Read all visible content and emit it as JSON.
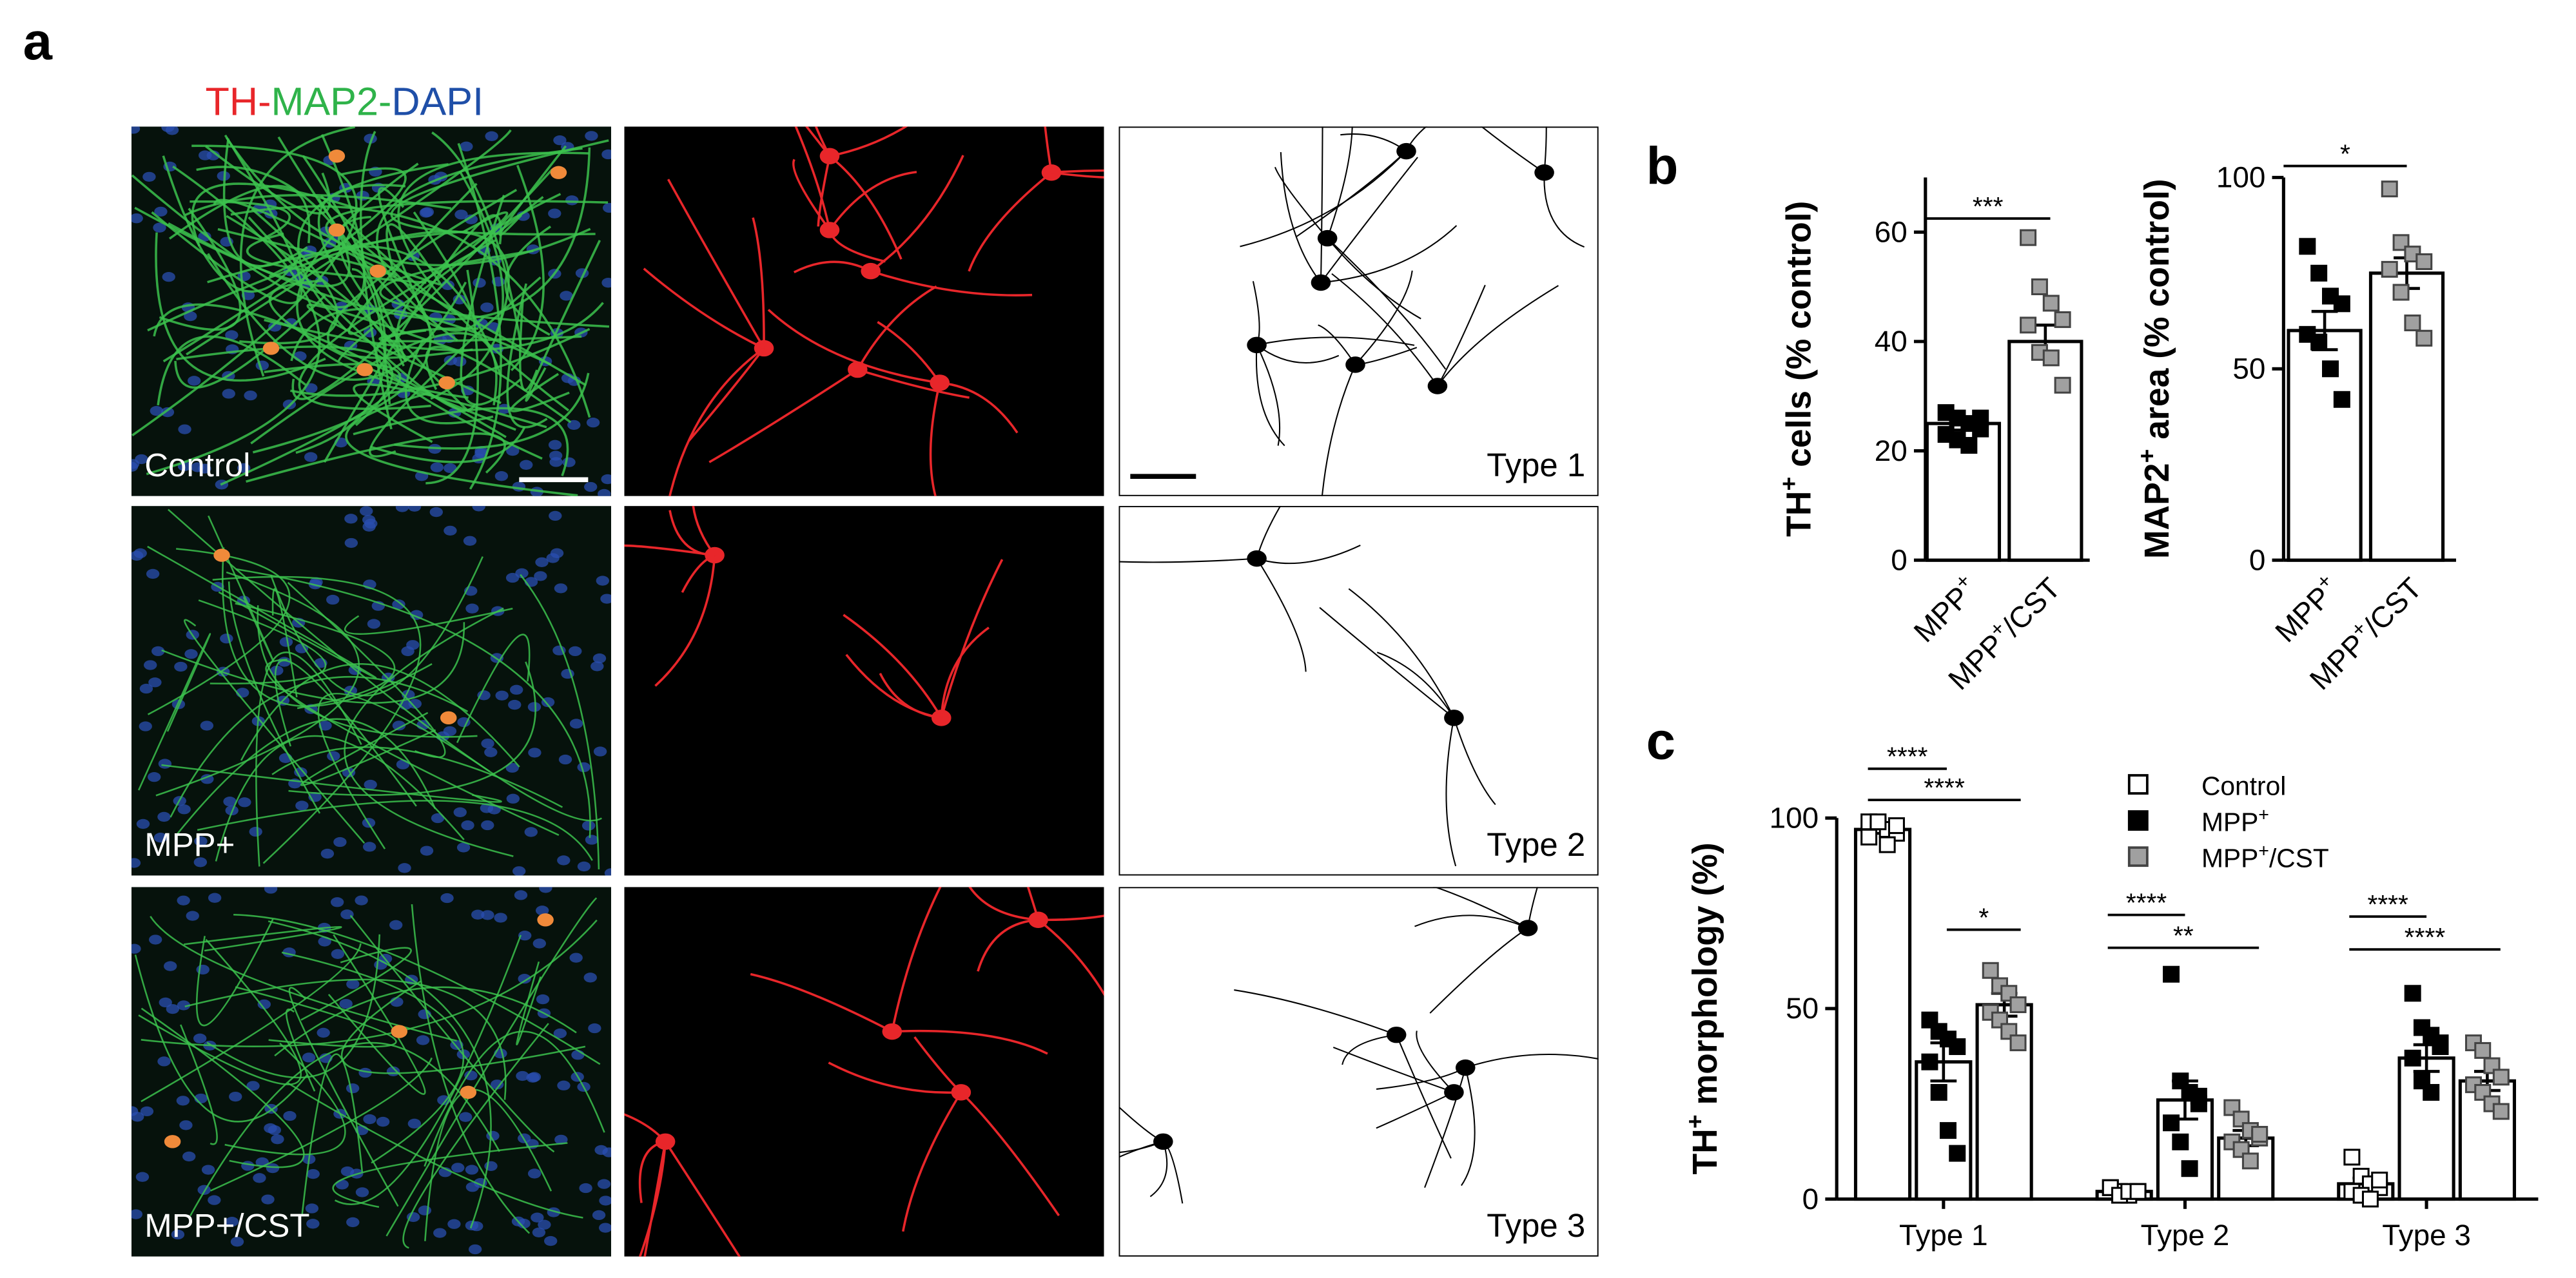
{
  "panel_labels": [
    "a",
    "b",
    "c"
  ],
  "panel_a": {
    "title_parts": [
      "TH-",
      "MAP2-",
      "DAPI"
    ],
    "title_colors": [
      "#e8262a",
      "#2fb34a",
      "#1f4fa8"
    ],
    "row_labels": [
      "Control",
      "MPP+",
      "MPP+/CST"
    ],
    "type_labels": [
      "Type 1",
      "Type 2",
      "Type 3"
    ]
  },
  "chart_data": [
    {
      "type": "bar",
      "ylabel": "TH+ cells (% control)",
      "categories": [
        "MPP+",
        "MPP+/CST"
      ],
      "values": [
        25,
        40
      ],
      "errors": [
        1.2,
        3
      ],
      "points": [
        [
          27,
          26,
          25,
          24,
          23,
          22,
          21,
          26
        ],
        [
          59,
          50,
          47,
          44,
          43,
          38,
          37,
          32
        ]
      ],
      "point_colors": [
        "#000000",
        "#a0a0a0"
      ],
      "color": "#ffffff",
      "ylim": [
        0,
        70
      ],
      "yticks": [
        0,
        20,
        40,
        60
      ],
      "significance": [
        "***"
      ]
    },
    {
      "type": "bar",
      "ylabel": "MAP2+ area (% control)",
      "categories": [
        "MPP+",
        "MPP+/CST"
      ],
      "values": [
        60,
        75
      ],
      "errors": [
        5,
        4
      ],
      "points": [
        [
          82,
          75,
          69,
          67,
          59,
          57,
          50,
          42
        ],
        [
          97,
          83,
          80,
          78,
          76,
          70,
          62,
          58
        ]
      ],
      "point_colors": [
        "#000000",
        "#a0a0a0"
      ],
      "color": "#ffffff",
      "ylim": [
        0,
        100
      ],
      "yticks": [
        0,
        50,
        100
      ],
      "significance": [
        "*"
      ]
    },
    {
      "type": "grouped_bar",
      "ylabel": "TH+ morphology (%)",
      "categories": [
        "Type 1",
        "Type 2",
        "Type 3"
      ],
      "series": [
        {
          "name": "Control",
          "color": "#ffffff",
          "values": [
            97,
            2,
            4
          ],
          "errors": [
            1,
            0.5,
            1.5
          ],
          "points": [
            [
              99,
              98,
              97,
              96,
              95,
              99,
              93,
              98
            ],
            [
              3,
              2,
              1,
              2,
              3,
              1,
              2,
              2
            ],
            [
              11,
              6,
              4,
              3,
              2,
              1,
              0,
              5
            ]
          ]
        },
        {
          "name": "MPP+",
          "color": "#000000",
          "values": [
            36,
            26,
            37
          ],
          "errors": [
            5,
            5,
            3.5
          ],
          "points": [
            [
              47,
              44,
              42,
              40,
              36,
              28,
              18,
              12
            ],
            [
              59,
              31,
              28,
              25,
              20,
              15,
              8,
              27
            ],
            [
              54,
              45,
              43,
              41,
              37,
              31,
              28,
              40
            ]
          ]
        },
        {
          "name": "MPP+/CST",
          "color": "#a0a0a0",
          "values": [
            51,
            16,
            31
          ],
          "errors": [
            3,
            2,
            2.5
          ],
          "points": [
            [
              60,
              56,
              54,
              51,
              49,
              47,
              44,
              41
            ],
            [
              24,
              21,
              18,
              16,
              15,
              13,
              10,
              17
            ],
            [
              41,
              39,
              35,
              32,
              30,
              28,
              25,
              23
            ]
          ]
        }
      ],
      "ylim": [
        0,
        100
      ],
      "yticks": [
        0,
        50,
        100
      ],
      "significance": [
        "****",
        "****",
        "*",
        "****",
        "**",
        "****",
        "****"
      ]
    }
  ]
}
